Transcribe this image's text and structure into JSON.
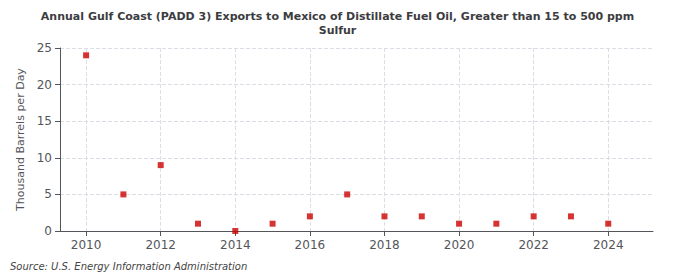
{
  "chart_data": {
    "type": "scatter",
    "title": "Annual Gulf Coast (PADD 3) Exports to Mexico of Distillate Fuel Oil, Greater than 15 to 500 ppm\nSulfur",
    "ylabel": "Thousand Barrels per Day",
    "annotations": [
      "Source: U.S. Energy Information Administration"
    ],
    "x": [
      2010,
      2011,
      2012,
      2013,
      2014,
      2015,
      2016,
      2017,
      2018,
      2019,
      2020,
      2021,
      2022,
      2023,
      2024
    ],
    "values": [
      24,
      5,
      9,
      1,
      0,
      1,
      2,
      5,
      2,
      2,
      1,
      1,
      2,
      2,
      1
    ],
    "color": "#cc0000",
    "marker": "square",
    "xlim": [
      2009.3,
      2025.2
    ],
    "xticks": [
      2010,
      2012,
      2014,
      2016,
      2018,
      2020,
      2022,
      2024
    ],
    "ylim": [
      0,
      25
    ],
    "yticks": [
      0,
      5,
      10,
      15,
      20,
      25
    ],
    "grid": true
  }
}
